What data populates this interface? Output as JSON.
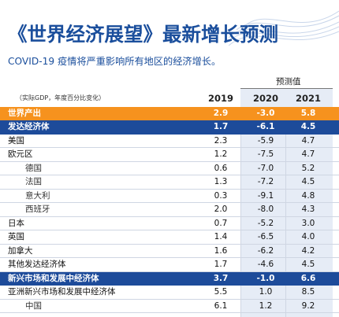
{
  "title": "《世界经济展望》最新增长预测",
  "subtitle": "COVID-19 疫情将严重影响所有地区的经济增长。",
  "projection_label": "预测值",
  "unit_label": "（实际GDP，年度百分比变化）",
  "years": [
    "2019",
    "2020",
    "2021"
  ],
  "colors": {
    "world_row": "#f6921e",
    "highlight_row": "#1d4b9a",
    "title": "#1a4e9c",
    "projection_shade": "#e6ecf6"
  },
  "rows": [
    {
      "name": "世界产出",
      "v2019": "2.9",
      "v2020": "-3.0",
      "v2021": "5.8"
    },
    {
      "name": "发达经济体",
      "v2019": "1.7",
      "v2020": "-6.1",
      "v2021": "4.5"
    },
    {
      "name": "美国",
      "v2019": "2.3",
      "v2020": "-5.9",
      "v2021": "4.7"
    },
    {
      "name": "欧元区",
      "v2019": "1.2",
      "v2020": "-7.5",
      "v2021": "4.7"
    },
    {
      "name": "德国",
      "v2019": "0.6",
      "v2020": "-7.0",
      "v2021": "5.2"
    },
    {
      "name": "法国",
      "v2019": "1.3",
      "v2020": "-7.2",
      "v2021": "4.5"
    },
    {
      "name": "意大利",
      "v2019": "0.3",
      "v2020": "-9.1",
      "v2021": "4.8"
    },
    {
      "name": "西班牙",
      "v2019": "2.0",
      "v2020": "-8.0",
      "v2021": "4.3"
    },
    {
      "name": "日本",
      "v2019": "0.7",
      "v2020": "-5.2",
      "v2021": "3.0"
    },
    {
      "name": "英国",
      "v2019": "1.4",
      "v2020": "-6.5",
      "v2021": "4.0"
    },
    {
      "name": "加拿大",
      "v2019": "1.6",
      "v2020": "-6.2",
      "v2021": "4.2"
    },
    {
      "name": "其他发达经济体",
      "v2019": "1.7",
      "v2020": "-4.6",
      "v2021": "4.5"
    },
    {
      "name": "新兴市场和发展中经济体",
      "v2019": "3.7",
      "v2020": "-1.0",
      "v2021": "6.6"
    },
    {
      "name": "亚洲新兴市场和发展中经济体",
      "v2019": "5.5",
      "v2020": "1.0",
      "v2021": "8.5"
    },
    {
      "name": "中国",
      "v2019": "6.1",
      "v2020": "1.2",
      "v2021": "9.2"
    }
  ]
}
